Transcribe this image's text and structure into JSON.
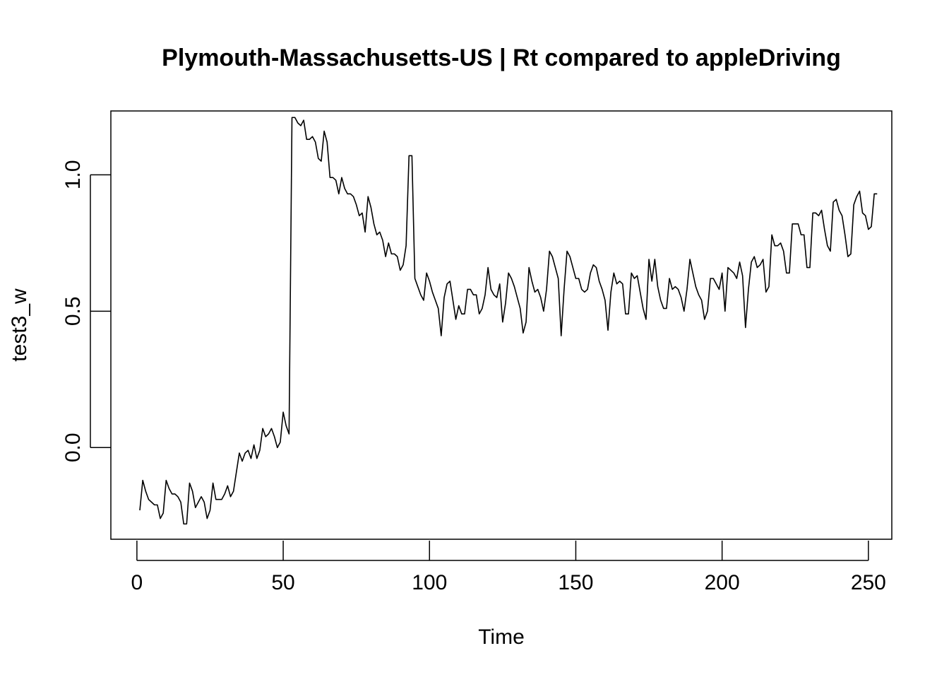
{
  "chart_data": {
    "type": "line",
    "title": "Plymouth-Massachusetts-US | Rt compared to appleDriving",
    "xlabel": "Time",
    "ylabel": "test3_w",
    "xlim": [
      -8.9,
      258
    ],
    "ylim": [
      -0.336,
      1.234
    ],
    "x_ticks": [
      0,
      50,
      100,
      150,
      200,
      250
    ],
    "x_tick_labels": [
      "0",
      "50",
      "100",
      "150",
      "200",
      "250"
    ],
    "y_ticks": [
      0.0,
      0.5,
      1.0
    ],
    "y_tick_labels": [
      "0.0",
      "0.5",
      "1.0"
    ],
    "grid": false,
    "legend": "none",
    "line_color": "#000000",
    "series": [
      {
        "x_start": 1,
        "values": [
          -0.23,
          -0.12,
          -0.16,
          -0.19,
          -0.2,
          -0.21,
          -0.21,
          -0.26,
          -0.24,
          -0.12,
          -0.15,
          -0.17,
          -0.17,
          -0.18,
          -0.2,
          -0.28,
          -0.28,
          -0.13,
          -0.16,
          -0.22,
          -0.2,
          -0.18,
          -0.2,
          -0.26,
          -0.23,
          -0.13,
          -0.19,
          -0.19,
          -0.19,
          -0.17,
          -0.14,
          -0.18,
          -0.16,
          -0.09,
          -0.02,
          -0.05,
          -0.02,
          -0.01,
          -0.04,
          0.01,
          -0.04,
          -0.01,
          0.07,
          0.04,
          0.05,
          0.07,
          0.04,
          0.0,
          0.02,
          0.13,
          0.08,
          0.05,
          1.21,
          1.21,
          1.19,
          1.18,
          1.2,
          1.13,
          1.13,
          1.14,
          1.12,
          1.06,
          1.05,
          1.16,
          1.12,
          0.99,
          0.99,
          0.98,
          0.93,
          0.99,
          0.95,
          0.93,
          0.93,
          0.92,
          0.89,
          0.85,
          0.86,
          0.79,
          0.92,
          0.88,
          0.82,
          0.78,
          0.79,
          0.76,
          0.7,
          0.75,
          0.71,
          0.71,
          0.7,
          0.65,
          0.67,
          0.74,
          1.07,
          1.07,
          0.62,
          0.59,
          0.56,
          0.54,
          0.64,
          0.61,
          0.57,
          0.54,
          0.51,
          0.41,
          0.55,
          0.6,
          0.61,
          0.54,
          0.47,
          0.52,
          0.49,
          0.49,
          0.58,
          0.58,
          0.56,
          0.56,
          0.49,
          0.51,
          0.56,
          0.66,
          0.58,
          0.56,
          0.55,
          0.6,
          0.46,
          0.53,
          0.64,
          0.62,
          0.59,
          0.55,
          0.51,
          0.42,
          0.46,
          0.66,
          0.61,
          0.57,
          0.58,
          0.55,
          0.5,
          0.58,
          0.72,
          0.7,
          0.66,
          0.62,
          0.41,
          0.58,
          0.72,
          0.7,
          0.66,
          0.62,
          0.62,
          0.58,
          0.57,
          0.58,
          0.64,
          0.67,
          0.66,
          0.61,
          0.58,
          0.54,
          0.43,
          0.57,
          0.64,
          0.6,
          0.61,
          0.6,
          0.49,
          0.49,
          0.64,
          0.62,
          0.63,
          0.57,
          0.51,
          0.47,
          0.69,
          0.61,
          0.69,
          0.59,
          0.54,
          0.51,
          0.51,
          0.62,
          0.58,
          0.59,
          0.58,
          0.55,
          0.5,
          0.58,
          0.69,
          0.64,
          0.59,
          0.56,
          0.54,
          0.47,
          0.5,
          0.62,
          0.62,
          0.6,
          0.58,
          0.64,
          0.5,
          0.66,
          0.65,
          0.64,
          0.62,
          0.68,
          0.63,
          0.44,
          0.58,
          0.68,
          0.7,
          0.66,
          0.67,
          0.69,
          0.57,
          0.59,
          0.78,
          0.74,
          0.74,
          0.75,
          0.72,
          0.64,
          0.64,
          0.82,
          0.82,
          0.82,
          0.78,
          0.78,
          0.66,
          0.66,
          0.86,
          0.86,
          0.85,
          0.87,
          0.8,
          0.74,
          0.72,
          0.9,
          0.91,
          0.87,
          0.85,
          0.78,
          0.7,
          0.71,
          0.89,
          0.92,
          0.94,
          0.86,
          0.85,
          0.8,
          0.81,
          0.93,
          0.93
        ]
      }
    ]
  }
}
